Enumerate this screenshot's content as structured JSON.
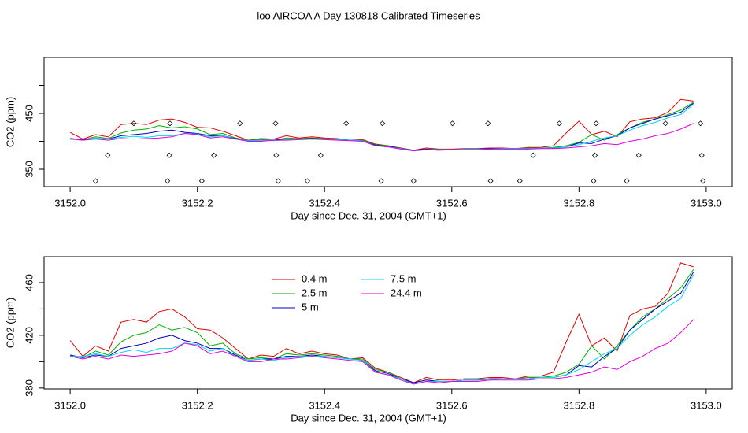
{
  "chart_data": [
    {
      "type": "line",
      "title": "loo AIRCOA A  Day 130818  Calibrated Timeseries",
      "xlabel": "Day since Dec. 31, 2004 (GMT+1)",
      "ylabel": "CO2 (ppm)",
      "xlim": [
        3151.959,
        3153.041
      ],
      "xticks": [
        {
          "value": 3152,
          "label": "3152.0"
        },
        3152.2,
        3152.4,
        3152.6,
        3152.8,
        {
          "value": 3153,
          "label": "3153.0"
        }
      ],
      "ylim": [
        319,
        550
      ],
      "yticks": [
        350,
        450
      ],
      "yminor": [
        400,
        500
      ],
      "points": {
        "x": [
          3152.1,
          3152.157,
          3152.267,
          3152.323,
          3152.434,
          3152.491,
          3152.601,
          3152.657,
          3152.769,
          3152.827,
          3152.936,
          3152.991,
          3152.059,
          3152.156,
          3152.226,
          3152.324,
          3152.394,
          3152.728,
          3152.825,
          3152.894,
          3152.993,
          3152.04,
          3152.153,
          3152.207,
          3152.327,
          3152.373,
          3152.489,
          3152.54,
          3152.661,
          3152.707,
          3152.823,
          3152.875,
          3152.995
        ],
        "y": [
          432,
          432,
          432,
          432,
          432,
          432,
          432,
          432,
          432,
          432,
          432,
          432,
          375,
          375,
          375,
          375,
          375,
          375,
          375,
          375,
          375,
          329,
          329,
          329,
          329,
          329,
          329,
          329,
          329,
          329,
          329,
          329,
          329
        ]
      }
    },
    {
      "type": "line",
      "xlabel": "Day since Dec. 31, 2004 (GMT+1)",
      "ylabel": "CO2 (ppm)",
      "xlim": [
        3151.959,
        3153.041
      ],
      "xticks": [
        {
          "value": 3152,
          "label": "3152.0"
        },
        3152.2,
        3152.4,
        3152.6,
        3152.8,
        {
          "value": 3153,
          "label": "3153.0"
        }
      ],
      "ylim": [
        379.3,
        479.7
      ],
      "yticks": [
        380,
        420,
        460
      ],
      "yminor": [
        400,
        440
      ],
      "x": [
        3152.0,
        3152.02,
        3152.04,
        3152.06,
        3152.08,
        3152.1,
        3152.12,
        3152.14,
        3152.16,
        3152.18,
        3152.2,
        3152.22,
        3152.24,
        3152.26,
        3152.28,
        3152.3,
        3152.32,
        3152.34,
        3152.36,
        3152.38,
        3152.4,
        3152.42,
        3152.44,
        3152.46,
        3152.48,
        3152.5,
        3152.52,
        3152.54,
        3152.56,
        3152.58,
        3152.6,
        3152.62,
        3152.64,
        3152.66,
        3152.68,
        3152.7,
        3152.72,
        3152.74,
        3152.76,
        3152.78,
        3152.8,
        3152.82,
        3152.84,
        3152.86,
        3152.88,
        3152.9,
        3152.92,
        3152.94,
        3152.96,
        3152.98
      ],
      "series": [
        {
          "name": "0.4 m",
          "color": "#e00000",
          "values": [
            416,
            404,
            412,
            408,
            430,
            432,
            430,
            438,
            440,
            434,
            425,
            424,
            418,
            410,
            402,
            405,
            404,
            410,
            406,
            408,
            406,
            405,
            402,
            403,
            395,
            392,
            388,
            384,
            388,
            386,
            386,
            387,
            387,
            388,
            388,
            387,
            389,
            389,
            392,
            415,
            436,
            412,
            418,
            408,
            435,
            440,
            442,
            452,
            475,
            472
          ]
        },
        {
          "name": "2.5 m",
          "color": "#00b000",
          "values": [
            405,
            403,
            408,
            405,
            415,
            420,
            422,
            428,
            424,
            426,
            422,
            412,
            414,
            406,
            402,
            403,
            402,
            406,
            405,
            406,
            405,
            404,
            402,
            402,
            394,
            392,
            387,
            384,
            386,
            385,
            385,
            386,
            386,
            387,
            387,
            387,
            388,
            388,
            389,
            392,
            398,
            412,
            402,
            412,
            424,
            434,
            440,
            448,
            456,
            470
          ]
        },
        {
          "name": "5 m",
          "color": "#0000c0",
          "values": [
            405,
            403,
            405,
            404,
            410,
            412,
            414,
            418,
            420,
            416,
            414,
            410,
            410,
            405,
            401,
            402,
            402,
            404,
            404,
            405,
            404,
            403,
            402,
            401,
            393,
            391,
            387,
            384,
            386,
            385,
            385,
            386,
            386,
            387,
            387,
            387,
            387,
            388,
            388,
            390,
            397,
            396,
            404,
            410,
            424,
            432,
            440,
            446,
            452,
            468
          ]
        },
        {
          "name": "7.5 m",
          "color": "#00d8e8",
          "values": [
            404,
            404,
            406,
            404,
            407,
            409,
            407,
            410,
            410,
            414,
            413,
            408,
            410,
            404,
            401,
            402,
            401,
            403,
            404,
            404,
            404,
            403,
            402,
            401,
            392,
            390,
            387,
            383,
            385,
            385,
            385,
            386,
            386,
            386,
            387,
            387,
            387,
            388,
            388,
            390,
            394,
            400,
            406,
            410,
            420,
            428,
            434,
            442,
            448,
            466
          ]
        },
        {
          "name": "24.4 m",
          "color": "#e000e0",
          "values": [
            404,
            402,
            404,
            402,
            405,
            404,
            405,
            406,
            408,
            414,
            412,
            406,
            408,
            404,
            400,
            400,
            402,
            402,
            403,
            404,
            403,
            402,
            401,
            400,
            392,
            390,
            386,
            383,
            385,
            384,
            385,
            385,
            385,
            386,
            386,
            386,
            386,
            387,
            387,
            388,
            390,
            392,
            396,
            394,
            400,
            404,
            410,
            414,
            422,
            432
          ]
        }
      ],
      "legend": "top-left"
    }
  ]
}
